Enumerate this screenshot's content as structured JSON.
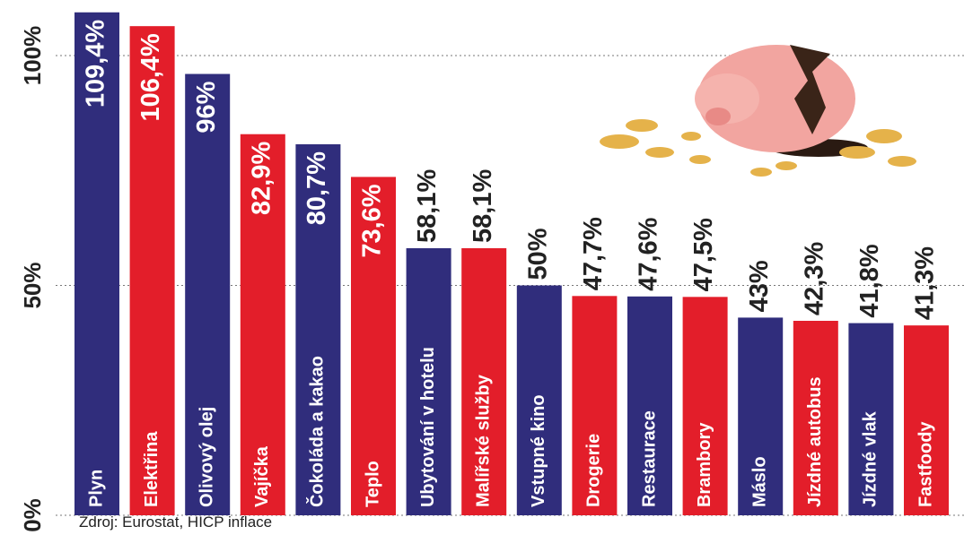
{
  "chart_data": {
    "type": "bar",
    "categories": [
      "Plyn",
      "Elektřina",
      "Olivový olej",
      "Vajíčka",
      "Čokoláda a kakao",
      "Teplo",
      "Ubytování v hotelu",
      "Malířské služby",
      "Vstupné kino",
      "Drogerie",
      "Restaurace",
      "Brambory",
      "Máslo",
      "Jízdné autobus",
      "Jízdné vlak",
      "Fastfoody"
    ],
    "values": [
      109.4,
      106.4,
      96,
      82.9,
      80.7,
      73.6,
      58.1,
      58.1,
      50,
      47.7,
      47.6,
      47.5,
      43,
      42.3,
      41.8,
      41.3
    ],
    "value_labels": [
      "109,4%",
      "106,4%",
      "96%",
      "82,9%",
      "80,7%",
      "73,6%",
      "58,1%",
      "58,1%",
      "50%",
      "47,7%",
      "47,6%",
      "47,5%",
      "43%",
      "42,3%",
      "41,8%",
      "41,3%"
    ],
    "colors": [
      "#302d7c",
      "#e31e2a",
      "#302d7c",
      "#e31e2a",
      "#302d7c",
      "#e31e2a",
      "#302d7c",
      "#e31e2a",
      "#302d7c",
      "#e31e2a",
      "#302d7c",
      "#e31e2a",
      "#302d7c",
      "#e31e2a",
      "#302d7c",
      "#e31e2a"
    ],
    "ylim": [
      0,
      110
    ],
    "yticks": [
      {
        "value": 0,
        "label": "0%"
      },
      {
        "value": 50,
        "label": "50%"
      },
      {
        "value": 100,
        "label": "100%"
      }
    ],
    "grid": true,
    "source": "Zdroj: Eurostat, HICP inflace"
  }
}
